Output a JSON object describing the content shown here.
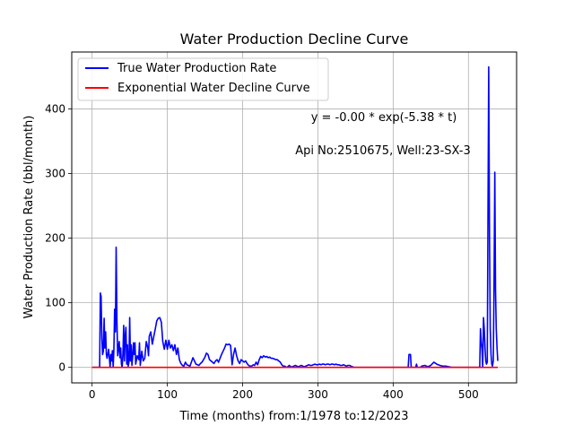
{
  "chart_data": {
    "type": "line",
    "title": "Water Production Decline Curve",
    "xlabel": "Time (months) from:1/1978 to:12/2023",
    "ylabel": "Water Production Rate (bbl/month)",
    "xlim": [
      -27,
      564
    ],
    "ylim": [
      -24,
      488
    ],
    "xticks": [
      0,
      100,
      200,
      300,
      400,
      500
    ],
    "yticks": [
      0,
      100,
      200,
      300,
      400
    ],
    "grid": true,
    "legend_position": "top-left",
    "annotations": [
      "y = -0.00 * exp(-5.38 * t)",
      "Api No:2510675, Well:23-SX-3"
    ],
    "series": [
      {
        "name": "True Water Production Rate",
        "color": "#0000ff",
        "points": [
          [
            0,
            0
          ],
          [
            10,
            0
          ],
          [
            11,
            115
          ],
          [
            12,
            110
          ],
          [
            13,
            45
          ],
          [
            14,
            20
          ],
          [
            15,
            25
          ],
          [
            16,
            76
          ],
          [
            17,
            30
          ],
          [
            18,
            55
          ],
          [
            19,
            20
          ],
          [
            20,
            14
          ],
          [
            22,
            28
          ],
          [
            24,
            0
          ],
          [
            25,
            20
          ],
          [
            26,
            10
          ],
          [
            27,
            26
          ],
          [
            28,
            0
          ],
          [
            29,
            28
          ],
          [
            30,
            90
          ],
          [
            31,
            55
          ],
          [
            32,
            186
          ],
          [
            33,
            70
          ],
          [
            34,
            18
          ],
          [
            36,
            40
          ],
          [
            37,
            15
          ],
          [
            38,
            30
          ],
          [
            39,
            5
          ],
          [
            40,
            0
          ],
          [
            41,
            22
          ],
          [
            42,
            65
          ],
          [
            43,
            10
          ],
          [
            44,
            48
          ],
          [
            45,
            62
          ],
          [
            46,
            5
          ],
          [
            47,
            35
          ],
          [
            48,
            2
          ],
          [
            49,
            8
          ],
          [
            50,
            77
          ],
          [
            51,
            10
          ],
          [
            52,
            35
          ],
          [
            53,
            3
          ],
          [
            54,
            18
          ],
          [
            55,
            38
          ],
          [
            56,
            20
          ],
          [
            57,
            38
          ],
          [
            58,
            5
          ],
          [
            60,
            18
          ],
          [
            62,
            12
          ],
          [
            63,
            38
          ],
          [
            64,
            3
          ],
          [
            66,
            25
          ],
          [
            68,
            10
          ],
          [
            70,
            14
          ],
          [
            72,
            40
          ],
          [
            74,
            30
          ],
          [
            75,
            18
          ],
          [
            76,
            48
          ],
          [
            78,
            55
          ],
          [
            80,
            36
          ],
          [
            82,
            48
          ],
          [
            84,
            60
          ],
          [
            86,
            72
          ],
          [
            88,
            76
          ],
          [
            90,
            77
          ],
          [
            92,
            70
          ],
          [
            94,
            40
          ],
          [
            96,
            28
          ],
          [
            98,
            42
          ],
          [
            100,
            28
          ],
          [
            102,
            42
          ],
          [
            104,
            30
          ],
          [
            106,
            35
          ],
          [
            108,
            26
          ],
          [
            110,
            35
          ],
          [
            112,
            20
          ],
          [
            114,
            30
          ],
          [
            116,
            12
          ],
          [
            118,
            6
          ],
          [
            120,
            3
          ],
          [
            122,
            2
          ],
          [
            124,
            8
          ],
          [
            126,
            4
          ],
          [
            128,
            3
          ],
          [
            130,
            2
          ],
          [
            132,
            8
          ],
          [
            134,
            15
          ],
          [
            136,
            10
          ],
          [
            138,
            5
          ],
          [
            140,
            4
          ],
          [
            142,
            3
          ],
          [
            144,
            6
          ],
          [
            146,
            8
          ],
          [
            148,
            12
          ],
          [
            150,
            16
          ],
          [
            152,
            22
          ],
          [
            154,
            20
          ],
          [
            156,
            12
          ],
          [
            158,
            10
          ],
          [
            160,
            8
          ],
          [
            162,
            6
          ],
          [
            164,
            10
          ],
          [
            166,
            12
          ],
          [
            168,
            8
          ],
          [
            170,
            14
          ],
          [
            172,
            20
          ],
          [
            174,
            25
          ],
          [
            176,
            30
          ],
          [
            178,
            36
          ],
          [
            180,
            35
          ],
          [
            182,
            36
          ],
          [
            184,
            34
          ],
          [
            186,
            4
          ],
          [
            188,
            20
          ],
          [
            190,
            30
          ],
          [
            192,
            18
          ],
          [
            194,
            10
          ],
          [
            196,
            6
          ],
          [
            198,
            12
          ],
          [
            200,
            10
          ],
          [
            202,
            8
          ],
          [
            204,
            10
          ],
          [
            206,
            6
          ],
          [
            208,
            3
          ],
          [
            210,
            2
          ],
          [
            212,
            2
          ],
          [
            214,
            4
          ],
          [
            216,
            3
          ],
          [
            218,
            8
          ],
          [
            220,
            4
          ],
          [
            222,
            12
          ],
          [
            224,
            17
          ],
          [
            226,
            15
          ],
          [
            228,
            18
          ],
          [
            230,
            16
          ],
          [
            232,
            17
          ],
          [
            234,
            15
          ],
          [
            236,
            16
          ],
          [
            238,
            14
          ],
          [
            240,
            14
          ],
          [
            242,
            13
          ],
          [
            244,
            12
          ],
          [
            246,
            12
          ],
          [
            248,
            10
          ],
          [
            250,
            8
          ],
          [
            252,
            4
          ],
          [
            254,
            2
          ],
          [
            256,
            2
          ],
          [
            258,
            0
          ],
          [
            260,
            1
          ],
          [
            262,
            3
          ],
          [
            264,
            1
          ],
          [
            266,
            1
          ],
          [
            268,
            2
          ],
          [
            270,
            3
          ],
          [
            272,
            2
          ],
          [
            274,
            1
          ],
          [
            276,
            2
          ],
          [
            278,
            3
          ],
          [
            280,
            2
          ],
          [
            282,
            1
          ],
          [
            284,
            2
          ],
          [
            286,
            3
          ],
          [
            288,
            4
          ],
          [
            290,
            3
          ],
          [
            292,
            3
          ],
          [
            294,
            4
          ],
          [
            296,
            5
          ],
          [
            298,
            4
          ],
          [
            300,
            4
          ],
          [
            302,
            5
          ],
          [
            304,
            4
          ],
          [
            306,
            5
          ],
          [
            308,
            5
          ],
          [
            310,
            4
          ],
          [
            312,
            5
          ],
          [
            314,
            5
          ],
          [
            316,
            4
          ],
          [
            318,
            5
          ],
          [
            320,
            5
          ],
          [
            322,
            4
          ],
          [
            324,
            5
          ],
          [
            326,
            4
          ],
          [
            328,
            4
          ],
          [
            330,
            3
          ],
          [
            332,
            3
          ],
          [
            334,
            4
          ],
          [
            336,
            3
          ],
          [
            338,
            2
          ],
          [
            340,
            3
          ],
          [
            342,
            3
          ],
          [
            344,
            2
          ],
          [
            346,
            1
          ],
          [
            348,
            0
          ],
          [
            420,
            0
          ],
          [
            421,
            20
          ],
          [
            423,
            20
          ],
          [
            424,
            0
          ],
          [
            430,
            0
          ],
          [
            431,
            5
          ],
          [
            432,
            0
          ],
          [
            436,
            0
          ],
          [
            438,
            2
          ],
          [
            442,
            3
          ],
          [
            446,
            1
          ],
          [
            450,
            3
          ],
          [
            454,
            8
          ],
          [
            458,
            5
          ],
          [
            462,
            3
          ],
          [
            466,
            2
          ],
          [
            470,
            2
          ],
          [
            474,
            1
          ],
          [
            478,
            0
          ],
          [
            515,
            0
          ],
          [
            516,
            60
          ],
          [
            517,
            40
          ],
          [
            518,
            28
          ],
          [
            519,
            0
          ],
          [
            520,
            77
          ],
          [
            521,
            60
          ],
          [
            522,
            30
          ],
          [
            523,
            10
          ],
          [
            524,
            5
          ],
          [
            525,
            8
          ],
          [
            526,
            240
          ],
          [
            527,
            465
          ],
          [
            528,
            200
          ],
          [
            529,
            60
          ],
          [
            530,
            20
          ],
          [
            531,
            5
          ],
          [
            532,
            2
          ],
          [
            533,
            10
          ],
          [
            534,
            120
          ],
          [
            535,
            302
          ],
          [
            536,
            120
          ],
          [
            537,
            60
          ],
          [
            538,
            30
          ],
          [
            539,
            10
          ]
        ]
      },
      {
        "name": "Exponential Water Decline Curve",
        "color": "#ff0000",
        "points": [
          [
            0,
            0
          ],
          [
            539,
            0
          ]
        ]
      }
    ]
  }
}
